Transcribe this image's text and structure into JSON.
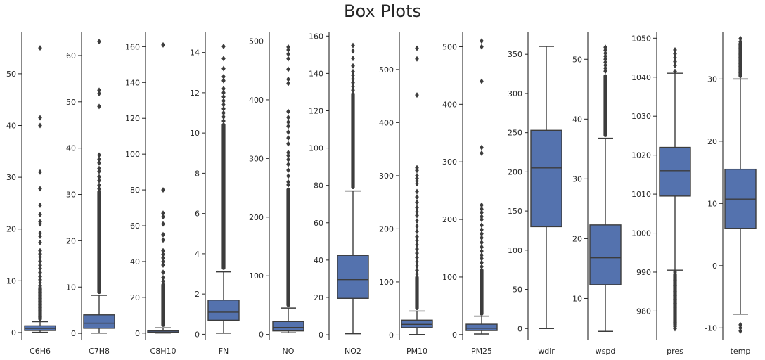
{
  "title": "Box Plots",
  "colors": {
    "box": "#5472ae",
    "line": "#3c3c3c",
    "axis": "#262626"
  },
  "chart_data": [
    {
      "type": "box",
      "category": "C6H6",
      "ylim": [
        -1.5,
        58
      ],
      "ticks": [
        0,
        10,
        20,
        30,
        40,
        50
      ],
      "min": 0.05,
      "q1": 0.4,
      "median": 0.8,
      "q3": 1.3,
      "max": 2.1,
      "outliers": [
        55,
        41.5,
        40,
        31,
        27.8,
        24.6,
        22.8,
        21.4,
        21,
        19.2,
        18.6,
        17.4,
        15.8,
        15.2,
        14.6,
        13.8,
        13,
        12.4,
        11.6,
        10.8,
        10.2,
        9.6,
        9,
        8.4,
        7.8,
        7.2,
        6.6,
        6,
        5.4,
        4.8,
        4.2,
        3.6,
        3,
        2.6
      ],
      "outlier_dense_from": 2.3,
      "outlier_dense_to": 9
    },
    {
      "type": "box",
      "category": "C7H8",
      "ylim": [
        -1.5,
        65
      ],
      "ticks": [
        0,
        10,
        20,
        30,
        40,
        50,
        60
      ],
      "min": 0.05,
      "q1": 1.1,
      "median": 2.2,
      "q3": 4.0,
      "max": 8.2,
      "outliers": [
        63,
        52.5,
        51.8,
        49,
        38.5,
        37.6,
        36.8,
        35.6,
        35,
        33.8,
        33,
        32,
        31.2
      ],
      "outlier_dense_from": 8.5,
      "outlier_dense_to": 31
    },
    {
      "type": "box",
      "category": "C8H10",
      "ylim": [
        -4,
        168
      ],
      "ticks": [
        0,
        20,
        40,
        60,
        80,
        100,
        120,
        140,
        160
      ],
      "min": 0.05,
      "q1": 0.2,
      "median": 0.6,
      "q3": 1.3,
      "max": 3.0,
      "outliers": [
        161,
        80,
        67,
        65,
        61,
        55,
        52,
        46,
        44,
        42,
        40,
        38,
        34,
        31,
        29
      ],
      "outlier_dense_from": 3.5,
      "outlier_dense_to": 28
    },
    {
      "type": "box",
      "category": "FN",
      "ylim": [
        -0.3,
        15
      ],
      "ticks": [
        0,
        2,
        4,
        6,
        8,
        10,
        12,
        14
      ],
      "min": 0.05,
      "q1": 0.7,
      "median": 1.1,
      "q3": 1.7,
      "max": 3.1,
      "outliers": [
        14.3,
        13.7,
        13.2,
        12.8,
        12.6,
        12.2,
        12.0,
        11.8,
        11.6,
        11.4,
        11.2,
        11.0,
        10.8,
        10.6
      ],
      "outlier_dense_from": 3.2,
      "outlier_dense_to": 10.5
    },
    {
      "type": "box",
      "category": "NO",
      "ylim": [
        -10,
        515
      ],
      "ticks": [
        0,
        100,
        200,
        300,
        400,
        500
      ],
      "min": 3,
      "q1": 6,
      "median": 12,
      "q3": 22,
      "max": 45,
      "outliers": [
        490,
        485,
        478,
        470,
        452,
        435,
        428,
        380,
        370,
        362,
        355,
        345,
        335,
        325,
        310,
        305,
        298,
        290,
        280,
        270,
        260,
        255
      ],
      "outlier_dense_from": 47,
      "outlier_dense_to": 250
    },
    {
      "type": "box",
      "category": "NO2",
      "ylim": [
        -3,
        162
      ],
      "ticks": [
        0,
        20,
        40,
        60,
        80,
        100,
        120,
        140,
        160
      ],
      "min": 0.5,
      "q1": 19.5,
      "median": 29.5,
      "q3": 42.5,
      "max": 77,
      "outliers": [
        155,
        152,
        148,
        144,
        141,
        139,
        137,
        135,
        133,
        131
      ],
      "outlier_dense_from": 78,
      "outlier_dense_to": 130
    },
    {
      "type": "box",
      "category": "PM10",
      "ylim": [
        -10,
        570
      ],
      "ticks": [
        0,
        100,
        200,
        300,
        400,
        500
      ],
      "min": 1,
      "q1": 14,
      "median": 20,
      "q3": 28,
      "max": 45,
      "outliers": [
        540,
        520,
        452,
        315,
        310,
        300,
        295,
        290,
        285,
        270,
        260,
        250,
        240,
        232,
        225,
        215,
        205,
        195,
        185,
        178,
        170,
        162,
        154,
        146,
        138,
        130,
        122,
        115
      ],
      "outlier_dense_from": 47,
      "outlier_dense_to": 112
    },
    {
      "type": "box",
      "category": "PM25",
      "ylim": [
        -10,
        525
      ],
      "ticks": [
        0,
        100,
        200,
        300,
        400,
        500
      ],
      "min": 1,
      "q1": 7,
      "median": 11,
      "q3": 18,
      "max": 32,
      "outliers": [
        510,
        500,
        440,
        325,
        315,
        225,
        218,
        212,
        205,
        200,
        190,
        182,
        175,
        168,
        160,
        152,
        145,
        138,
        132,
        125,
        118
      ],
      "outlier_dense_from": 33,
      "outlier_dense_to": 115
    },
    {
      "type": "box",
      "category": "wdir",
      "ylim": [
        -15,
        378
      ],
      "ticks": [
        0,
        50,
        100,
        150,
        200,
        250,
        300,
        350
      ],
      "min": 0,
      "q1": 130,
      "median": 205,
      "q3": 253,
      "max": 360,
      "outliers": [],
      "outlier_dense_from": null,
      "outlier_dense_to": null
    },
    {
      "type": "box",
      "category": "wspd",
      "ylim": [
        3,
        54.5
      ],
      "ticks": [
        10,
        20,
        30,
        40,
        50
      ],
      "min": 4.5,
      "q1": 12.3,
      "median": 16.8,
      "q3": 22.3,
      "max": 36.8,
      "outliers": [
        52,
        51.5,
        51,
        50.5,
        50,
        49.5,
        49,
        48.5,
        48
      ],
      "outlier_dense_from": 37,
      "outlier_dense_to": 47.5
    },
    {
      "type": "box",
      "category": "pres",
      "ylim": [
        972.5,
        1051.5
      ],
      "ticks": [
        980,
        990,
        1000,
        1010,
        1020,
        1030,
        1040,
        1050
      ],
      "min": 990.5,
      "q1": 1009.5,
      "median": 1016,
      "q3": 1022,
      "max": 1041,
      "outliers": [
        1047,
        1046,
        1045,
        1044,
        1043,
        1041.5,
        990,
        988,
        986.5,
        985,
        984,
        983,
        982,
        981,
        980,
        978,
        977,
        976,
        975.5
      ],
      "outlier_dense_from": 976,
      "outlier_dense_to": 990
    },
    {
      "type": "box",
      "category": "temp",
      "ylim": [
        -12,
        37.5
      ],
      "ticks": [
        -10,
        0,
        10,
        20,
        30
      ],
      "min": -7.8,
      "q1": 6,
      "median": 10.7,
      "q3": 15.5,
      "max": 30,
      "outliers": [
        36.5,
        36,
        35.5,
        35,
        34.5,
        34,
        33.5,
        33,
        32.5,
        32,
        31.5,
        31,
        30.5,
        -9.5,
        -10,
        -10.5
      ],
      "outlier_dense_from": 30.2,
      "outlier_dense_to": 36
    }
  ]
}
